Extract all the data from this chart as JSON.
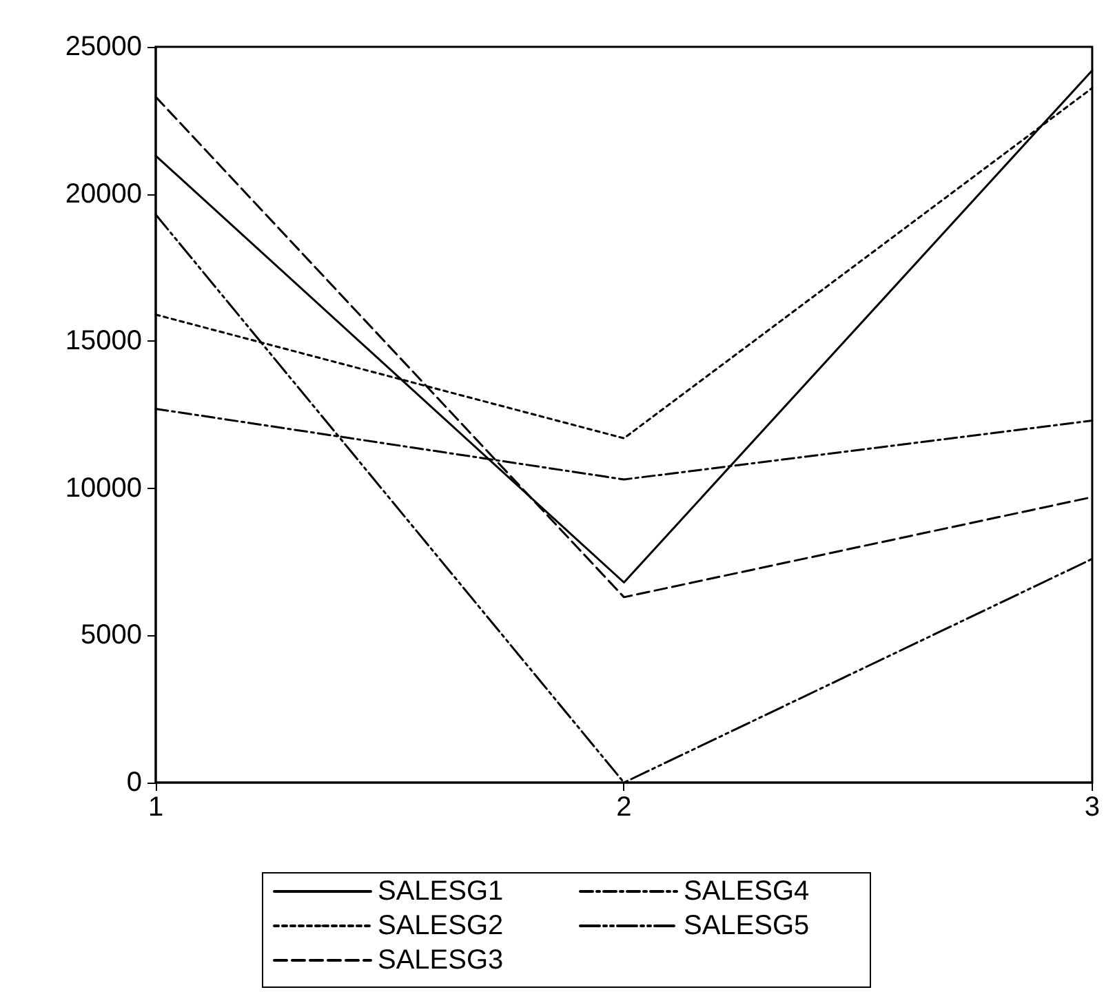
{
  "chart_data": {
    "type": "line",
    "x": [
      1,
      2,
      3
    ],
    "xlim": [
      1,
      3
    ],
    "xticks": [
      1,
      2,
      3
    ],
    "ylim": [
      0,
      25000
    ],
    "yticks": [
      0,
      5000,
      10000,
      15000,
      20000,
      25000
    ],
    "grid": false,
    "marker": "none",
    "legend": "bottom",
    "series": [
      {
        "name": "SALESG1",
        "color": "#000000",
        "line_style": "solid",
        "values": [
          21300,
          6800,
          24200
        ]
      },
      {
        "name": "SALESG2",
        "color": "#000000",
        "line_style": "dotted",
        "values": [
          15900,
          11700,
          23600
        ]
      },
      {
        "name": "SALESG3",
        "color": "#000000",
        "line_style": "dashed",
        "values": [
          23300,
          6300,
          9700
        ]
      },
      {
        "name": "SALESG4",
        "color": "#000000",
        "line_style": "dashdot",
        "values": [
          12700,
          10300,
          12300
        ]
      },
      {
        "name": "SALESG5",
        "color": "#000000",
        "line_style": "longdashdot",
        "values": [
          19300,
          0,
          7600
        ]
      }
    ]
  }
}
